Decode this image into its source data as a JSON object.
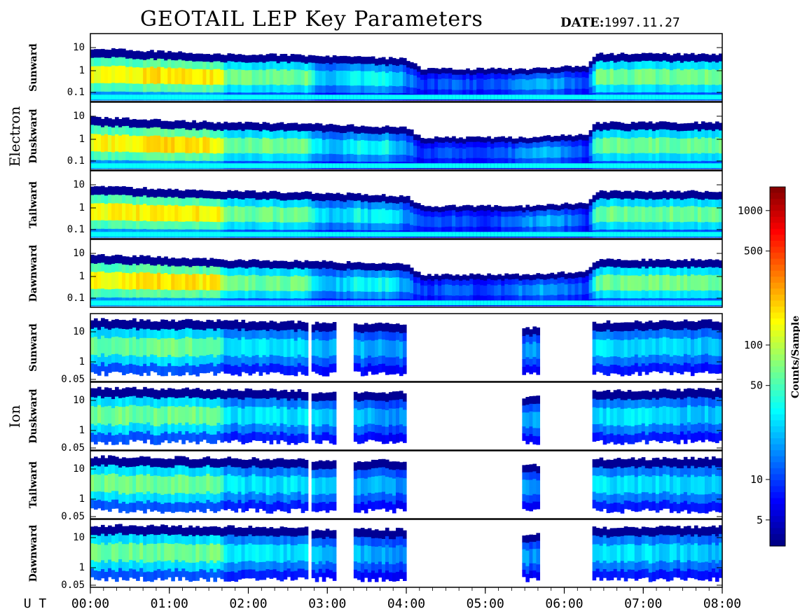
{
  "header": {
    "title": "GEOTAIL LEP Key Parameters",
    "date_label": "DATE:",
    "date_value": "1997.11.27"
  },
  "chart_data": {
    "type": "heatmap",
    "title": "GEOTAIL LEP Key Parameters",
    "x_axis": {
      "label": "U T",
      "range": [
        "00:00",
        "08:00"
      ],
      "ticks": [
        "00:00",
        "01:00",
        "02:00",
        "03:00",
        "04:00",
        "05:00",
        "06:00",
        "07:00",
        "08:00"
      ]
    },
    "colorbar": {
      "label": "Counts/Sample",
      "scale": "log",
      "ticks": [
        5,
        10,
        50,
        100,
        500,
        1000
      ],
      "tick_labels": [
        "5",
        "10",
        "50",
        "100",
        "500",
        "1000"
      ]
    },
    "groups": [
      {
        "name": "Electron",
        "y_scale": "log",
        "y_ticks": [
          "10",
          "1",
          "0.1"
        ],
        "panels": [
          {
            "name": "Sunward"
          },
          {
            "name": "Duskward"
          },
          {
            "name": "Tailward"
          },
          {
            "name": "Dawnward"
          }
        ],
        "intensity_profile": {
          "hours": [
            0.0,
            1.0,
            1.65,
            1.7,
            2.75,
            2.85,
            3.1,
            3.4,
            3.5,
            3.75,
            4.0,
            4.2,
            4.6,
            5.0,
            5.5,
            5.8,
            6.0,
            6.3,
            6.4,
            7.0,
            8.0
          ],
          "peak": [
            0.7,
            0.75,
            0.72,
            0.55,
            0.55,
            0.4,
            0.35,
            0.45,
            0.4,
            0.45,
            0.3,
            0.2,
            0.25,
            0.2,
            0.3,
            0.35,
            0.3,
            0.2,
            0.55,
            0.55,
            0.55
          ]
        }
      },
      {
        "name": "Ion",
        "y_scale": "log",
        "y_ticks": [
          "10",
          "1",
          "0.05"
        ],
        "panels": [
          {
            "name": "Sunward"
          },
          {
            "name": "Duskward"
          },
          {
            "name": "Tailward"
          },
          {
            "name": "Dawnward"
          }
        ],
        "active_intervals_hours": [
          [
            0.0,
            2.75
          ],
          [
            2.8,
            3.1
          ],
          [
            3.35,
            4.0
          ],
          [
            5.45,
            5.7
          ],
          [
            6.35,
            8.0
          ]
        ],
        "intensity_profile": {
          "hours": [
            0.0,
            1.0,
            1.65,
            1.7,
            2.75,
            3.0,
            3.5,
            4.0,
            5.5,
            6.4,
            7.0,
            8.0
          ],
          "peak": [
            0.55,
            0.55,
            0.55,
            0.4,
            0.4,
            0.35,
            0.35,
            0.3,
            0.3,
            0.4,
            0.4,
            0.35
          ]
        }
      }
    ]
  }
}
